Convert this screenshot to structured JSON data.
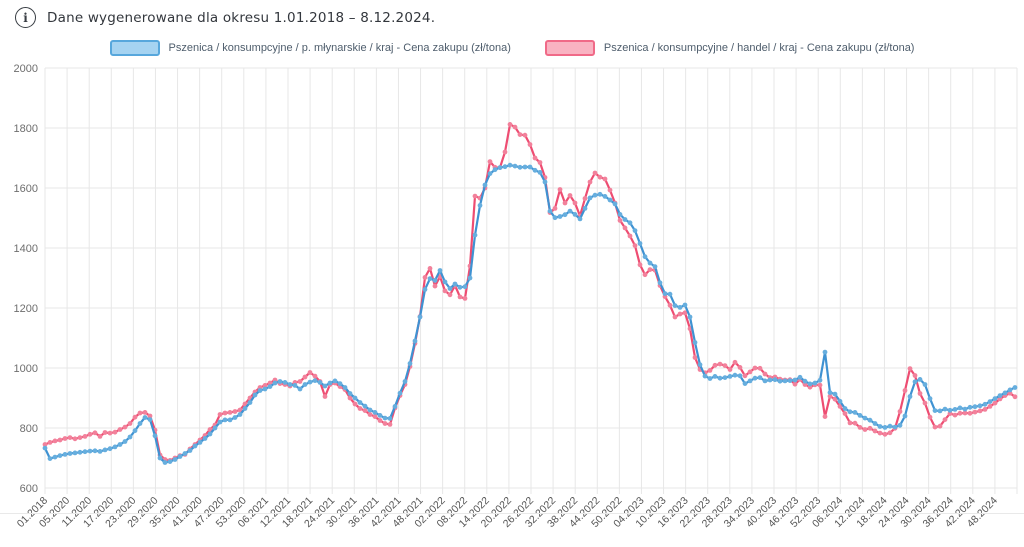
{
  "header": {
    "info_icon": "i",
    "title": "Dane wygenerowane dla okresu 1.01.2018 – 8.12.2024."
  },
  "chart_data": {
    "type": "line",
    "title": "",
    "xlabel": "",
    "ylabel": "",
    "y_range": [
      600,
      2000
    ],
    "y_ticks": [
      2000,
      1800,
      1600,
      1400,
      1200,
      1000,
      800,
      600
    ],
    "grid": true,
    "legend_position": "top",
    "x_tick_labels": [
      "01.2018",
      "05.2020",
      "11.2020",
      "17.2020",
      "23.2020",
      "29.2020",
      "35.2020",
      "41.2020",
      "47.2020",
      "53.2020",
      "06.2021",
      "12.2021",
      "18.2021",
      "24.2021",
      "30.2021",
      "36.2021",
      "42.2021",
      "48.2021",
      "02.2022",
      "08.2022",
      "14.2022",
      "20.2022",
      "26.2022",
      "32.2022",
      "38.2022",
      "44.2022",
      "50.2022",
      "04.2023",
      "10.2023",
      "16.2023",
      "22.2023",
      "28.2023",
      "34.2023",
      "40.2023",
      "46.2023",
      "52.2023",
      "06.2024",
      "12.2024",
      "18.2024",
      "24.2024",
      "30.2024",
      "36.2024",
      "42.2024",
      "48.2024"
    ],
    "colors": {
      "grid": "#e7e7e7",
      "blue_line": "#3f92d2",
      "blue_dot": "#66aede",
      "pink_line": "#ee4d72",
      "pink_dot": "#f2819b"
    },
    "series": [
      {
        "name": "Pszenica / konsumpcyjne / p. młynarskie / kraj - Cena zakupu (zł/tona)",
        "line_color": "#3f92d2",
        "dot_color": "#66aede",
        "values": [
          733,
          698,
          703,
          708,
          712,
          715,
          717,
          719,
          721,
          723,
          724,
          722,
          727,
          731,
          737,
          745,
          755,
          770,
          791,
          815,
          835,
          828,
          774,
          700,
          685,
          688,
          695,
          705,
          715,
          725,
          740,
          752,
          765,
          780,
          800,
          820,
          827,
          827,
          835,
          845,
          865,
          885,
          910,
          925,
          930,
          938,
          950,
          955,
          952,
          945,
          942,
          930,
          945,
          953,
          958,
          952,
          940,
          950,
          957,
          948,
          935,
          915,
          900,
          885,
          873,
          860,
          852,
          842,
          833,
          832,
          872,
          916,
          955,
          1015,
          1090,
          1170,
          1262,
          1298,
          1292,
          1325,
          1287,
          1265,
          1280,
          1269,
          1271,
          1300,
          1443,
          1542,
          1610,
          1648,
          1661,
          1668,
          1671,
          1676,
          1673,
          1669,
          1670,
          1670,
          1659,
          1652,
          1620,
          1523,
          1501,
          1505,
          1511,
          1523,
          1512,
          1497,
          1532,
          1567,
          1576,
          1579,
          1572,
          1560,
          1547,
          1512,
          1495,
          1484,
          1458,
          1415,
          1371,
          1350,
          1338,
          1284,
          1248,
          1246,
          1208,
          1202,
          1210,
          1170,
          1085,
          1011,
          973,
          965,
          972,
          966,
          968,
          972,
          976,
          974,
          948,
          957,
          966,
          968,
          957,
          960,
          961,
          956,
          957,
          958,
          960,
          969,
          956,
          947,
          950,
          959,
          1053,
          918,
          913,
          889,
          865,
          854,
          852,
          842,
          833,
          826,
          815,
          805,
          802,
          806,
          803,
          809,
          840,
          905,
          954,
          962,
          945,
          898,
          858,
          857,
          863,
          859,
          862,
          867,
          863,
          869,
          871,
          874,
          879,
          888,
          898,
          908,
          917,
          927,
          935
        ]
      },
      {
        "name": "Pszenica / konsumpcyjne / handel / kraj - Cena zakupu (zł/tona)",
        "line_color": "#ee4d72",
        "dot_color": "#f2819b",
        "values": [
          745,
          752,
          757,
          760,
          765,
          768,
          764,
          768,
          772,
          779,
          784,
          772,
          785,
          783,
          786,
          795,
          803,
          815,
          836,
          850,
          852,
          840,
          793,
          710,
          695,
          692,
          700,
          708,
          712,
          730,
          745,
          760,
          775,
          795,
          810,
          845,
          850,
          852,
          855,
          860,
          880,
          900,
          920,
          935,
          942,
          950,
          960,
          948,
          945,
          940,
          952,
          955,
          970,
          985,
          973,
          955,
          905,
          945,
          950,
          938,
          928,
          900,
          880,
          865,
          858,
          845,
          838,
          825,
          815,
          812,
          867,
          908,
          945,
          1005,
          1082,
          1172,
          1302,
          1332,
          1273,
          1305,
          1257,
          1244,
          1275,
          1237,
          1232,
          1340,
          1573,
          1566,
          1600,
          1688,
          1669,
          1668,
          1720,
          1812,
          1803,
          1778,
          1776,
          1745,
          1700,
          1685,
          1635,
          1518,
          1532,
          1595,
          1550,
          1575,
          1550,
          1507,
          1565,
          1620,
          1650,
          1636,
          1630,
          1593,
          1550,
          1492,
          1467,
          1440,
          1408,
          1344,
          1311,
          1328,
          1326,
          1275,
          1238,
          1209,
          1170,
          1180,
          1184,
          1131,
          1035,
          995,
          984,
          992,
          1009,
          1013,
          1008,
          995,
          1019,
          1002,
          974,
          987,
          1000,
          999,
          980,
          968,
          970,
          963,
          960,
          961,
          946,
          962,
          945,
          936,
          944,
          943,
          838,
          906,
          896,
          872,
          848,
          817,
          816,
          802,
          795,
          799,
          790,
          783,
          779,
          784,
          799,
          855,
          925,
          998,
          975,
          915,
          883,
          836,
          803,
          806,
          828,
          848,
          843,
          849,
          850,
          849,
          853,
          857,
          862,
          872,
          883,
          897,
          908,
          916,
          904
        ]
      }
    ]
  }
}
